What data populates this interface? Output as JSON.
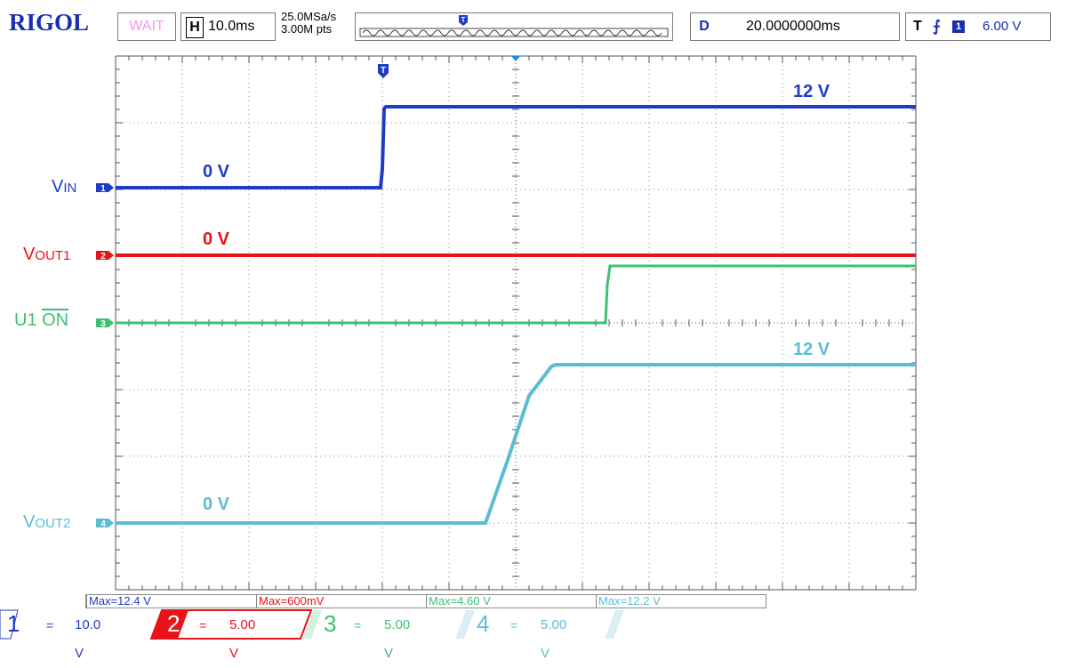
{
  "header": {
    "brand": "RIGOL",
    "status": "WAIT",
    "timebase_badge": "H",
    "timebase": "10.0ms",
    "sample_rate": "25.0MSa/s",
    "memory_depth": "3.00M pts",
    "delay_badge": "D",
    "delay": "20.0000000ms",
    "trigger_badge": "T",
    "trigger_channel": "1",
    "trigger_level": "6.00 V"
  },
  "channels": [
    {
      "marker": "1",
      "label_main": "V",
      "label_sub": "IN",
      "color": "#1f3cc8",
      "zero_text": "0 V",
      "high_text": "12 V"
    },
    {
      "marker": "2",
      "label_main": "V",
      "label_sub": "OUT1",
      "color": "#e8131a",
      "zero_text": "0 V"
    },
    {
      "marker": "3",
      "label_main": "U1 ",
      "label_sub": "ON",
      "color": "#3fbf73"
    },
    {
      "marker": "4",
      "label_main": "V",
      "label_sub": "OUT2",
      "color": "#5bbdd4",
      "zero_text": "0 V",
      "high_text": "12 V"
    }
  ],
  "measurements": [
    "Max=12.4 V",
    "Max=600mV",
    "Max=4.60 V",
    "Max=12.2 V"
  ],
  "channel_settings": [
    {
      "number": "1",
      "coupling": "=",
      "scale": "10.0 V",
      "color": "#1f3cc8"
    },
    {
      "number": "2",
      "coupling": "=",
      "scale": "5.00 V",
      "color": "#e8131a"
    },
    {
      "number": "3",
      "coupling": "=",
      "scale": "5.00 V",
      "color": "#3fbf73"
    },
    {
      "number": "4",
      "coupling": "=",
      "scale": "5.00 V",
      "color": "#5bbdd4"
    }
  ],
  "trigger_marker": "T"
}
